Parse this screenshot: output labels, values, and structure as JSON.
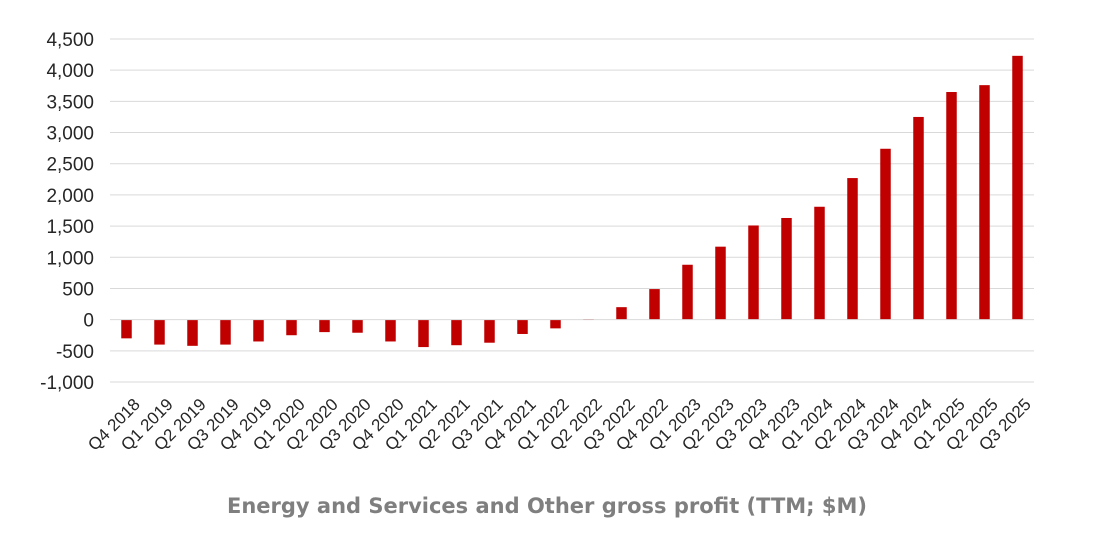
{
  "chart_data": {
    "type": "bar",
    "title": "Energy and Services and Other gross profit (TTM; $M)",
    "xlabel": "",
    "ylabel": "",
    "ylim": [
      -1000,
      4500
    ],
    "yticks": [
      -1000,
      -500,
      0,
      500,
      1000,
      1500,
      2000,
      2500,
      3000,
      3500,
      4000,
      4500
    ],
    "ytick_labels": [
      "-1,000",
      "-500",
      "0",
      "500",
      "1,000",
      "1,500",
      "2,000",
      "2,500",
      "3,000",
      "3,500",
      "4,000",
      "4,500"
    ],
    "grid": true,
    "legend": "none",
    "bar_color": "#c00000",
    "categories": [
      "Q4 2018",
      "Q1 2019",
      "Q2 2019",
      "Q3 2019",
      "Q4 2019",
      "Q1 2020",
      "Q2 2020",
      "Q3 2020",
      "Q4 2020",
      "Q1 2021",
      "Q2 2021",
      "Q3 2021",
      "Q4 2021",
      "Q1 2022",
      "Q2 2022",
      "Q3 2022",
      "Q4 2022",
      "Q1 2023",
      "Q2 2023",
      "Q3 2023",
      "Q4 2023",
      "Q1 2024",
      "Q2 2024",
      "Q3 2024",
      "Q4 2024",
      "Q1 2025",
      "Q2 2025",
      "Q3 2025"
    ],
    "values": [
      -300,
      -400,
      -420,
      -400,
      -350,
      -250,
      -200,
      -210,
      -350,
      -440,
      -410,
      -370,
      -230,
      -140,
      10,
      200,
      490,
      880,
      1170,
      1510,
      1630,
      1810,
      2270,
      2740,
      3250,
      3650,
      3760,
      4230
    ]
  }
}
